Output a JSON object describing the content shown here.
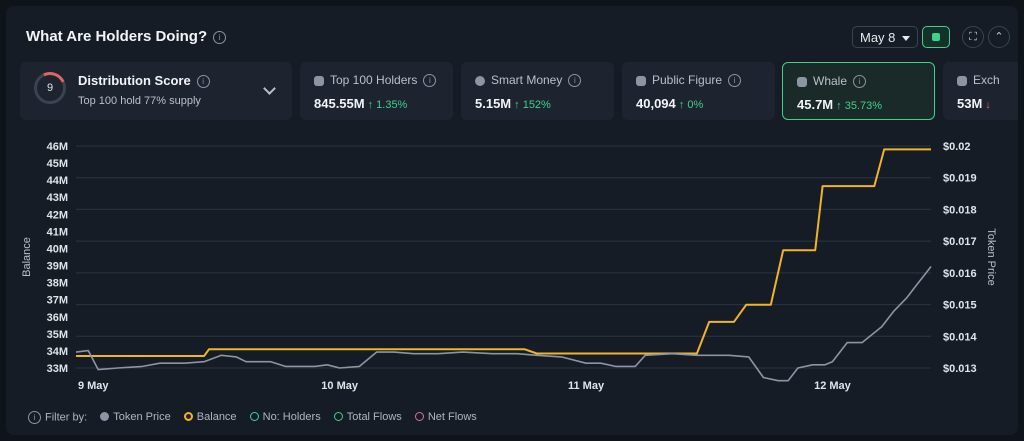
{
  "header": {
    "title": "What Are Holders Doing?",
    "date": "May 8"
  },
  "cards": [
    {
      "label": "Distribution Score",
      "score": "9",
      "subtitle": "Top 100 hold 77% supply"
    },
    {
      "label": "Top 100 Holders",
      "value": "845.55M",
      "change": "↑ 1.35%"
    },
    {
      "label": "Smart Money",
      "value": "5.15M",
      "change": "↑ 152%"
    },
    {
      "label": "Public Figure",
      "value": "40,094",
      "change": "↑ 0%"
    },
    {
      "label": "Whale",
      "value": "45.7M",
      "change": "↑ 35.73%"
    },
    {
      "label": "Exch",
      "value": "53M",
      "change": "↓"
    }
  ],
  "legend": {
    "filter_label": "Filter by:",
    "items": [
      "Token Price",
      "Balance",
      "No: Holders",
      "Total Flows",
      "Net Flows"
    ]
  },
  "colors": {
    "balance": "#f0b429",
    "price": "#8c95a3",
    "accent": "#3fd18a"
  },
  "chart_data": {
    "type": "line",
    "ylabel_left": "Balance",
    "ylabel_right": "Token Price",
    "y_left_ticks": [
      "46M",
      "45M",
      "44M",
      "43M",
      "42M",
      "41M",
      "40M",
      "39M",
      "38M",
      "37M",
      "36M",
      "35M",
      "34M",
      "33M"
    ],
    "y_left_range": [
      33,
      46
    ],
    "y_right_ticks": [
      "$0.02",
      "$0.019",
      "$0.018",
      "$0.017",
      "$0.016",
      "$0.015",
      "$0.014",
      "$0.013"
    ],
    "y_right_range": [
      0.013,
      0.02
    ],
    "x_ticks": [
      "9 May",
      "10 May",
      "11 May",
      "12 May"
    ],
    "x_range": [
      -0.07,
      3.4
    ],
    "series": [
      {
        "name": "Balance",
        "color": "#f0b429",
        "points": [
          [
            -0.07,
            33.7
          ],
          [
            0.45,
            33.7
          ],
          [
            0.47,
            34.1
          ],
          [
            1.75,
            34.1
          ],
          [
            1.8,
            33.85
          ],
          [
            2.45,
            33.85
          ],
          [
            2.5,
            35.7
          ],
          [
            2.6,
            35.7
          ],
          [
            2.65,
            36.7
          ],
          [
            2.75,
            36.7
          ],
          [
            2.8,
            39.9
          ],
          [
            2.93,
            39.9
          ],
          [
            2.96,
            43.65
          ],
          [
            3.17,
            43.65
          ],
          [
            3.21,
            45.8
          ],
          [
            3.4,
            45.8
          ]
        ]
      },
      {
        "name": "Token Price",
        "color": "#8c95a3",
        "points": [
          [
            -0.07,
            0.0135
          ],
          [
            -0.02,
            0.01355
          ],
          [
            0.02,
            0.01295
          ],
          [
            0.1,
            0.013
          ],
          [
            0.2,
            0.01305
          ],
          [
            0.27,
            0.01315
          ],
          [
            0.37,
            0.01315
          ],
          [
            0.45,
            0.0132
          ],
          [
            0.52,
            0.0134
          ],
          [
            0.58,
            0.01335
          ],
          [
            0.62,
            0.0132
          ],
          [
            0.72,
            0.0132
          ],
          [
            0.78,
            0.01305
          ],
          [
            0.9,
            0.01305
          ],
          [
            0.95,
            0.0131
          ],
          [
            1.0,
            0.013
          ],
          [
            1.08,
            0.01305
          ],
          [
            1.15,
            0.0135
          ],
          [
            1.22,
            0.0135
          ],
          [
            1.3,
            0.01345
          ],
          [
            1.4,
            0.01345
          ],
          [
            1.5,
            0.0135
          ],
          [
            1.62,
            0.01345
          ],
          [
            1.72,
            0.01345
          ],
          [
            1.8,
            0.0134
          ],
          [
            1.9,
            0.01335
          ],
          [
            2.0,
            0.01315
          ],
          [
            2.06,
            0.01315
          ],
          [
            2.12,
            0.01305
          ],
          [
            2.2,
            0.01305
          ],
          [
            2.24,
            0.0134
          ],
          [
            2.35,
            0.01345
          ],
          [
            2.45,
            0.0134
          ],
          [
            2.58,
            0.0134
          ],
          [
            2.66,
            0.01335
          ],
          [
            2.72,
            0.0127
          ],
          [
            2.78,
            0.0126
          ],
          [
            2.82,
            0.0126
          ],
          [
            2.86,
            0.013
          ],
          [
            2.92,
            0.0131
          ],
          [
            2.97,
            0.0131
          ],
          [
            3.0,
            0.0132
          ],
          [
            3.06,
            0.0138
          ],
          [
            3.12,
            0.0138
          ],
          [
            3.2,
            0.0143
          ],
          [
            3.25,
            0.0148
          ],
          [
            3.3,
            0.0152
          ],
          [
            3.34,
            0.0156
          ],
          [
            3.36,
            0.0158
          ],
          [
            3.38,
            0.016
          ],
          [
            3.4,
            0.0162
          ]
        ]
      }
    ]
  }
}
